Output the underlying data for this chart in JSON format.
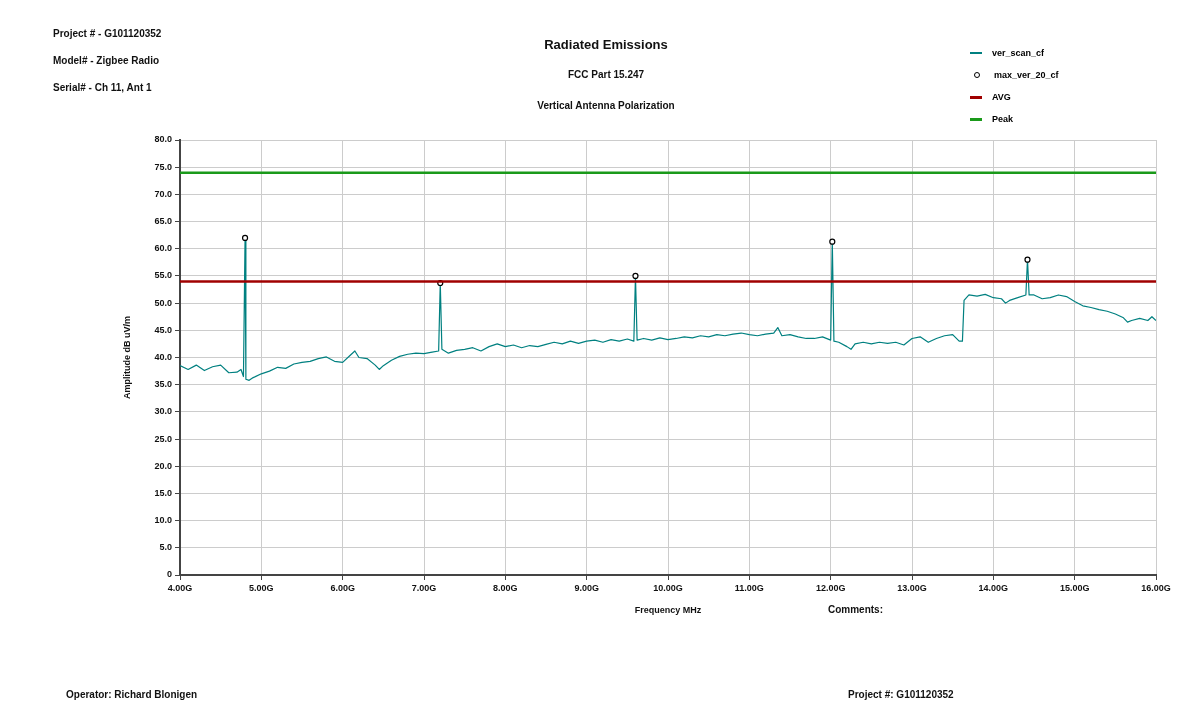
{
  "chart_data": {
    "type": "line",
    "title": "Radiated Emissions",
    "subtitle": "FCC Part 15.247",
    "xlabel": "Frequency MHz",
    "ylabel": "Amplitude dB uV/m",
    "annotations": [
      "Project # - G101120352",
      "Model# - Zigbee Radio",
      "Serial# - Ch 11, Ant 1",
      "Vertical Antenna Polarization",
      "Comments:",
      "Operator: Richard Blonigen",
      "Project #: G101120352"
    ],
    "xlim": [
      4,
      16
    ],
    "ylim": [
      0,
      80
    ],
    "xticks": [
      {
        "value": 4,
        "label": "4.00G"
      },
      {
        "value": 5,
        "label": "5.00G"
      },
      {
        "value": 6,
        "label": "6.00G"
      },
      {
        "value": 7,
        "label": "7.00G"
      },
      {
        "value": 8,
        "label": "8.00G"
      },
      {
        "value": 9,
        "label": "9.00G"
      },
      {
        "value": 10,
        "label": "10.00G"
      },
      {
        "value": 11,
        "label": "11.00G"
      },
      {
        "value": 12,
        "label": "12.00G"
      },
      {
        "value": 13,
        "label": "13.00G"
      },
      {
        "value": 14,
        "label": "14.00G"
      },
      {
        "value": 15,
        "label": "15.00G"
      },
      {
        "value": 16,
        "label": "16.00G"
      }
    ],
    "yticks": [
      0,
      {
        "value": 5,
        "label": "5.0"
      },
      {
        "value": 10,
        "label": "10.0"
      },
      {
        "value": 15,
        "label": "15.0"
      },
      {
        "value": 20,
        "label": "20.0"
      },
      {
        "value": 25,
        "label": "25.0"
      },
      {
        "value": 30,
        "label": "30.0"
      },
      {
        "value": 35,
        "label": "35.0"
      },
      {
        "value": 40,
        "label": "40.0"
      },
      {
        "value": 45,
        "label": "45.0"
      },
      {
        "value": 50,
        "label": "50.0"
      },
      {
        "value": 55,
        "label": "55.0"
      },
      {
        "value": 60,
        "label": "60.0"
      },
      {
        "value": 65,
        "label": "65.0"
      },
      {
        "value": 70,
        "label": "70.0"
      },
      {
        "value": 75,
        "label": "75.0"
      },
      {
        "value": 80,
        "label": "80.0"
      }
    ],
    "grid": true,
    "legend": "top right",
    "marker": "none",
    "series": [
      {
        "name": "ver_scan_cf",
        "color": "#008080",
        "x": [
          4.0,
          4.1,
          4.2,
          4.3,
          4.4,
          4.5,
          4.6,
          4.7,
          4.75,
          4.78,
          4.8,
          4.81,
          4.85,
          4.9,
          5.0,
          5.1,
          5.2,
          5.3,
          5.4,
          5.5,
          5.6,
          5.7,
          5.8,
          5.9,
          6.0,
          6.1,
          6.15,
          6.2,
          6.3,
          6.4,
          6.45,
          6.5,
          6.6,
          6.7,
          6.8,
          6.9,
          7.0,
          7.1,
          7.18,
          7.2,
          7.22,
          7.3,
          7.4,
          7.5,
          7.6,
          7.7,
          7.8,
          7.9,
          8.0,
          8.1,
          8.2,
          8.3,
          8.4,
          8.5,
          8.6,
          8.7,
          8.8,
          8.9,
          9.0,
          9.1,
          9.2,
          9.3,
          9.4,
          9.5,
          9.58,
          9.6,
          9.62,
          9.7,
          9.8,
          9.9,
          10.0,
          10.1,
          10.2,
          10.3,
          10.4,
          10.5,
          10.6,
          10.7,
          10.8,
          10.9,
          11.0,
          11.1,
          11.2,
          11.3,
          11.35,
          11.4,
          11.5,
          11.6,
          11.7,
          11.8,
          11.9,
          12.0,
          12.02,
          12.04,
          12.1,
          12.2,
          12.25,
          12.3,
          12.4,
          12.5,
          12.6,
          12.7,
          12.8,
          12.9,
          13.0,
          13.1,
          13.2,
          13.3,
          13.4,
          13.5,
          13.58,
          13.62,
          13.64,
          13.7,
          13.8,
          13.9,
          14.0,
          14.1,
          14.15,
          14.2,
          14.3,
          14.4,
          14.42,
          14.44,
          14.5,
          14.6,
          14.7,
          14.8,
          14.9,
          15.0,
          15.1,
          15.2,
          15.3,
          15.4,
          15.5,
          15.6,
          15.65,
          15.7,
          15.8,
          15.9,
          15.95,
          16.0
        ],
        "values": [
          38.5,
          37.8,
          38.6,
          37.6,
          38.3,
          38.6,
          37.2,
          37.3,
          37.8,
          36.5,
          62.0,
          36.0,
          35.8,
          36.3,
          37.0,
          37.5,
          38.2,
          38.0,
          38.8,
          39.1,
          39.3,
          39.8,
          40.1,
          39.3,
          39.1,
          40.5,
          41.2,
          40.0,
          39.8,
          38.6,
          37.8,
          38.5,
          39.5,
          40.2,
          40.6,
          40.8,
          40.7,
          41.0,
          41.2,
          53.7,
          41.5,
          40.8,
          41.3,
          41.5,
          41.8,
          41.2,
          42.0,
          42.5,
          42.0,
          42.3,
          41.8,
          42.2,
          42.0,
          42.4,
          42.8,
          42.5,
          43.0,
          42.6,
          43.0,
          43.2,
          42.8,
          43.3,
          43.0,
          43.4,
          43.0,
          55.0,
          43.2,
          43.5,
          43.2,
          43.6,
          43.3,
          43.5,
          43.8,
          43.6,
          44.0,
          43.8,
          44.2,
          44.0,
          44.3,
          44.5,
          44.2,
          44.0,
          44.3,
          44.5,
          45.5,
          44.0,
          44.2,
          43.8,
          43.5,
          43.5,
          43.8,
          43.2,
          61.3,
          43.0,
          42.8,
          42.0,
          41.5,
          42.5,
          42.8,
          42.5,
          42.8,
          42.6,
          42.8,
          42.3,
          43.5,
          43.8,
          42.8,
          43.5,
          44.0,
          44.2,
          43.0,
          43.0,
          50.5,
          51.5,
          51.3,
          51.6,
          51.0,
          50.8,
          50.0,
          50.5,
          51.0,
          51.5,
          58.0,
          51.5,
          51.5,
          50.8,
          51.0,
          51.5,
          51.2,
          50.3,
          49.5,
          49.2,
          48.8,
          48.5,
          48.0,
          47.3,
          46.5,
          46.8,
          47.2,
          46.8,
          47.5,
          46.8
        ]
      },
      {
        "name": "max_ver_20_cf",
        "type": "scatter",
        "color": "#000000",
        "marker": "circle",
        "x": [
          4.8,
          7.2,
          9.6,
          12.02,
          14.42
        ],
        "values": [
          62.0,
          53.7,
          55.0,
          61.3,
          58.0
        ]
      }
    ],
    "ref_lines": [
      {
        "axis": "y",
        "value": 54,
        "label": "AVG",
        "color": "#a00000"
      },
      {
        "axis": "y",
        "value": 74,
        "label": "Peak",
        "color": "#1a9a1a"
      }
    ]
  }
}
